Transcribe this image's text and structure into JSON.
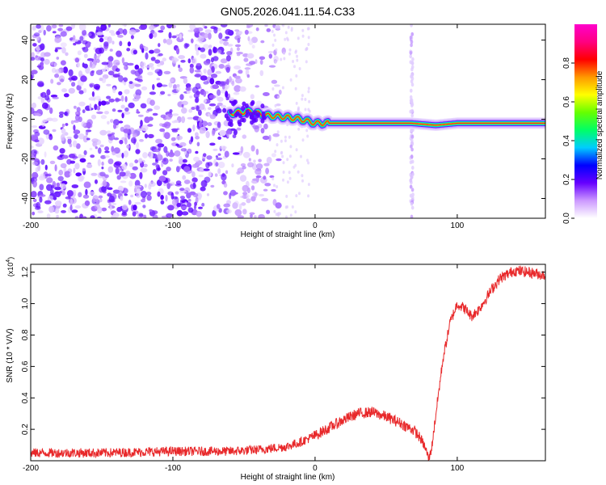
{
  "title": "GN05.2026.041.11.54.C33",
  "chart_data": [
    {
      "type": "heatmap",
      "title": "GN05.2026.041.11.54.C33",
      "xlabel": "Height of straight line (km)",
      "ylabel": "Frequency (Hz)",
      "xlim": [
        -200,
        162
      ],
      "ylim": [
        -50,
        48
      ],
      "xticks": [
        -200,
        -100,
        0,
        100
      ],
      "xtick_labels": [
        "-200",
        "-100",
        "0",
        "100"
      ],
      "yticks": [
        -40,
        -20,
        0,
        20,
        40
      ],
      "ytick_labels": [
        "-40",
        "-20",
        "0",
        "20",
        "40"
      ],
      "colorbar": {
        "label": "Normalized spectral amplitude",
        "range": [
          0,
          1
        ],
        "ticks": [
          0.0,
          0.2,
          0.4,
          0.6,
          0.8
        ],
        "tick_labels": [
          "0.0",
          "0.2",
          "0.4",
          "0.6",
          "0.8"
        ],
        "colors": [
          "#ffffff",
          "#cc99ff",
          "#6600ff",
          "#0000ff",
          "#00ccff",
          "#00ff66",
          "#66ff00",
          "#ffff00",
          "#ff9900",
          "#ff0000",
          "#ff0080",
          "#ff00cc"
        ]
      },
      "features": {
        "noise_region_x": [
          -200,
          -30
        ],
        "carrier_line": [
          {
            "x": -60,
            "freq": 3
          },
          {
            "x": -45,
            "freq": 4
          },
          {
            "x": -35,
            "freq": 2
          },
          {
            "x": -20,
            "freq": 1
          },
          {
            "x": -10,
            "freq": 0
          },
          {
            "x": 0,
            "freq": -2
          },
          {
            "x": 40,
            "freq": -2
          },
          {
            "x": 68,
            "freq": -2
          },
          {
            "x": 85,
            "freq": -3
          },
          {
            "x": 100,
            "freq": -2
          },
          {
            "x": 162,
            "freq": -2
          }
        ],
        "vertical_stripe_x": 68
      }
    },
    {
      "type": "line",
      "xlabel": "Height of straight line (km)",
      "ylabel": "SNR (10 * V/V)",
      "y_multiplier": "(x10",
      "y_exponent": "4",
      "xlim": [
        -200,
        162
      ],
      "ylim": [
        0,
        1.25
      ],
      "xticks": [
        -200,
        -100,
        0,
        100
      ],
      "xtick_labels": [
        "-200",
        "-100",
        "0",
        "100"
      ],
      "yticks": [
        0.2,
        0.4,
        0.6,
        0.8,
        1.0,
        1.2
      ],
      "ytick_labels": [
        "0.2",
        "0.4",
        "0.6",
        "0.8",
        "1.0",
        "1.2"
      ],
      "series": [
        {
          "name": "SNR",
          "color": "#e8282a",
          "x": [
            -200,
            -150,
            -100,
            -60,
            -40,
            -20,
            -10,
            0,
            10,
            20,
            30,
            40,
            50,
            60,
            70,
            75,
            78,
            80,
            82,
            85,
            90,
            95,
            100,
            105,
            110,
            115,
            120,
            125,
            130,
            140,
            150,
            162
          ],
          "values": [
            0.05,
            0.05,
            0.06,
            0.06,
            0.07,
            0.09,
            0.12,
            0.16,
            0.21,
            0.26,
            0.3,
            0.31,
            0.28,
            0.24,
            0.19,
            0.13,
            0.07,
            0.01,
            0.08,
            0.3,
            0.65,
            0.88,
            1.0,
            0.97,
            0.92,
            0.96,
            1.03,
            1.1,
            1.16,
            1.21,
            1.2,
            1.18
          ]
        }
      ]
    }
  ]
}
